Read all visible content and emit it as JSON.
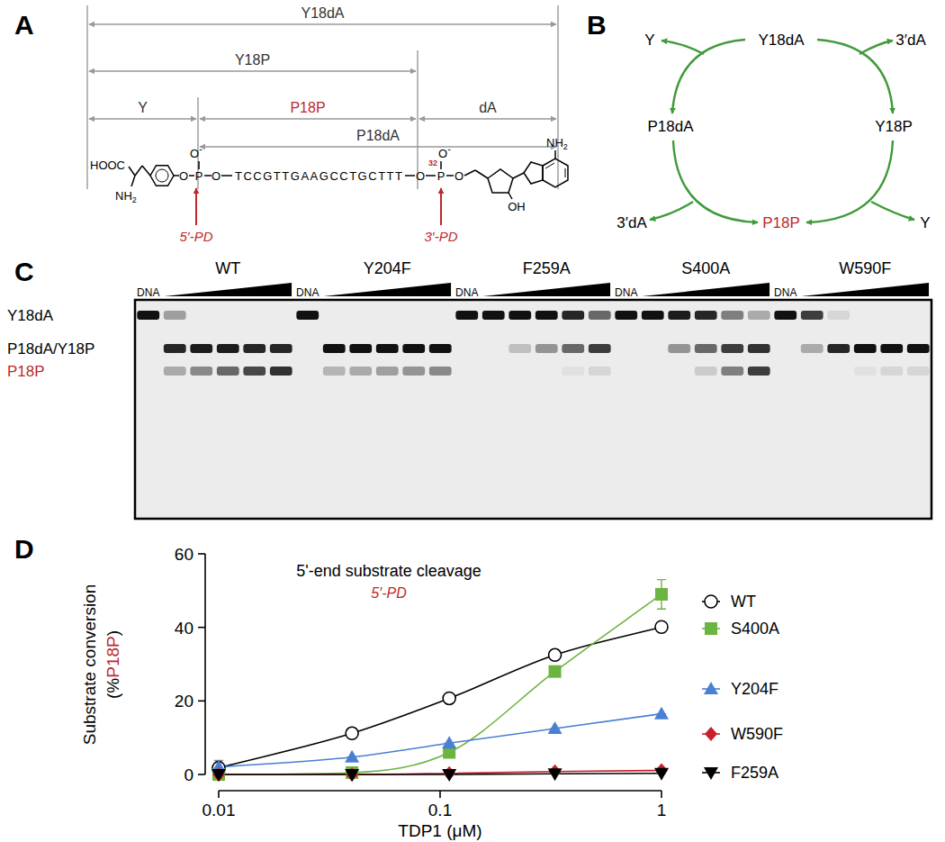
{
  "panel_a": {
    "panel_label": "A",
    "spans": [
      {
        "label": "Y18dA"
      },
      {
        "label": "Y18P"
      },
      {
        "label": "Y"
      },
      {
        "label": "P18P",
        "color": "#c0282a"
      },
      {
        "label": "dA"
      },
      {
        "label": "P18dA"
      }
    ],
    "structure": {
      "acid": "HOOC",
      "amine": "NH",
      "amine_sub": "2",
      "oxygen": "O",
      "phosphorus": "P",
      "charge": "-",
      "sequence": "TCCGTTGAAGCCTGCTTT",
      "isotope": "32",
      "hydroxyl": "OH"
    },
    "sites": [
      {
        "label": "5′-PD",
        "color": "#c0282a"
      },
      {
        "label": "3′-PD",
        "color": "#c0282a"
      }
    ]
  },
  "panel_b": {
    "panel_label": "B",
    "nodes": [
      {
        "label": "Y"
      },
      {
        "label": "Y18dA"
      },
      {
        "label": "3′dA"
      },
      {
        "label": "P18dA"
      },
      {
        "label": "Y18P"
      },
      {
        "label": "3′dA"
      },
      {
        "label": "P18P",
        "color": "#c0282a"
      },
      {
        "label": "Y"
      }
    ],
    "color": "#3f9a3a"
  },
  "panel_c": {
    "panel_label": "C",
    "control_label": "DNA",
    "bands": [
      {
        "label": "Y18dA"
      },
      {
        "label": "P18dA/Y18P"
      },
      {
        "label": "P18P",
        "color": "#c0282a"
      }
    ],
    "groups": [
      {
        "label": "WT",
        "lanes": [
          [
            1,
            0,
            0
          ],
          [
            0.35,
            0.9,
            0.3
          ],
          [
            0,
            0.95,
            0.45
          ],
          [
            0,
            0.95,
            0.6
          ],
          [
            0,
            0.9,
            0.75
          ],
          [
            0,
            0.9,
            0.85
          ]
        ]
      },
      {
        "label": "Y204F",
        "lanes": [
          [
            1,
            0,
            0
          ],
          [
            0,
            1,
            0.25
          ],
          [
            0,
            1,
            0.3
          ],
          [
            0,
            1,
            0.35
          ],
          [
            0,
            1,
            0.4
          ],
          [
            0,
            1,
            0.45
          ]
        ]
      },
      {
        "label": "F259A",
        "lanes": [
          [
            1,
            0,
            0
          ],
          [
            1,
            0,
            0
          ],
          [
            1,
            0.2,
            0
          ],
          [
            1,
            0.4,
            0
          ],
          [
            0.9,
            0.6,
            0.05
          ],
          [
            0.6,
            0.8,
            0.1
          ]
        ]
      },
      {
        "label": "S400A",
        "lanes": [
          [
            1,
            0,
            0
          ],
          [
            1,
            0,
            0
          ],
          [
            0.95,
            0.4,
            0
          ],
          [
            0.9,
            0.6,
            0.15
          ],
          [
            0.5,
            0.8,
            0.5
          ],
          [
            0.3,
            0.85,
            0.8
          ]
        ]
      },
      {
        "label": "W590F",
        "lanes": [
          [
            1,
            0,
            0
          ],
          [
            0.8,
            0.3,
            0
          ],
          [
            0.1,
            0.9,
            0
          ],
          [
            0,
            1,
            0.05
          ],
          [
            0,
            1,
            0.1
          ],
          [
            0,
            1,
            0.1
          ]
        ]
      }
    ]
  },
  "chart_data": {
    "type": "line",
    "panel_label": "D",
    "title": "5'-end substrate cleavage",
    "subtitle": "5′-PD",
    "x_label": "TDP1 (μM)",
    "y_label": {
      "line1": "Substrate conversion",
      "line2": [
        {
          "text": "(%"
        },
        {
          "text": "P18P",
          "color": "#c0282a"
        },
        {
          "text": ")"
        }
      ]
    },
    "log": "x",
    "x": [
      0.01,
      0.04,
      0.11,
      0.33,
      1
    ],
    "xlim": [
      0.01,
      1
    ],
    "xticks": [
      0.01,
      0.1,
      1
    ],
    "ylim": [
      0,
      60
    ],
    "yticks": [
      0,
      20,
      40,
      60
    ],
    "legend": "right",
    "series": [
      {
        "name": "WT",
        "color": "#000000",
        "marker": "circle-open",
        "values": [
          1.8,
          11.2,
          20.7,
          32.5,
          40.1
        ],
        "errors": [
          2,
          0,
          0,
          0,
          0
        ]
      },
      {
        "name": "S400A",
        "color": "#6bb43f",
        "marker": "square",
        "values": [
          0,
          0.5,
          6,
          28,
          49
        ],
        "errors": [
          0,
          0,
          0,
          0,
          4
        ]
      },
      {
        "name": "Y204F",
        "color": "#4a7fd4",
        "marker": "triangle",
        "values": [
          2,
          4.7,
          8.5,
          12.5,
          16.5
        ],
        "errors": [
          0,
          0,
          0,
          0,
          0
        ]
      },
      {
        "name": "W590F",
        "color": "#c8202a",
        "marker": "diamond",
        "values": [
          0,
          0,
          0.3,
          0.8,
          1.1
        ],
        "errors": [
          0,
          0,
          0,
          0,
          0
        ]
      },
      {
        "name": "F259A",
        "color": "#000000",
        "marker": "triangle-down",
        "values": [
          0,
          0,
          0,
          0.2,
          0.3
        ],
        "errors": [
          0,
          0,
          0,
          0,
          0
        ]
      }
    ]
  }
}
